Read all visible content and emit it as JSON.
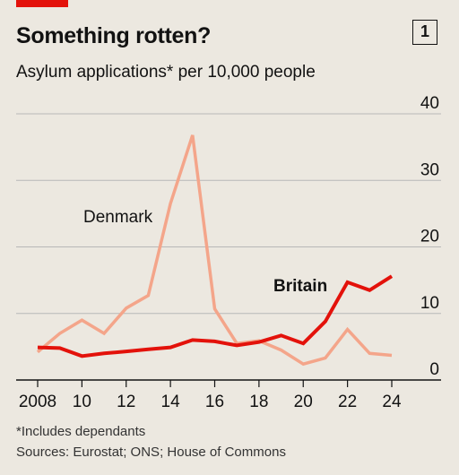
{
  "header": {
    "title": "Something rotten?",
    "chart_number": "1",
    "subtitle": "Asylum applications* per 10,000 people"
  },
  "footer": {
    "footnote": "*Includes dependants",
    "source": "Sources: Eurostat; ONS; House of Commons"
  },
  "colors": {
    "background": "#ece8e0",
    "accent": "#e3120b",
    "britain": "#e3120b",
    "denmark": "#f4a58a",
    "grid": "#b7b7b7"
  },
  "chart_data": {
    "type": "line",
    "title": "Something rotten?",
    "subtitle": "Asylum applications* per 10,000 people",
    "x_ticks": [
      {
        "value": 2008,
        "label": "2008"
      },
      {
        "value": 2010,
        "label": "10"
      },
      {
        "value": 2012,
        "label": "12"
      },
      {
        "value": 2014,
        "label": "14"
      },
      {
        "value": 2016,
        "label": "16"
      },
      {
        "value": 2018,
        "label": "18"
      },
      {
        "value": 2020,
        "label": "20"
      },
      {
        "value": 2022,
        "label": "22"
      },
      {
        "value": 2024,
        "label": "24"
      }
    ],
    "y_ticks": [
      0,
      10,
      20,
      30,
      40
    ],
    "ylim": [
      0,
      40
    ],
    "xlim": [
      2008,
      2024
    ],
    "grid": true,
    "series": [
      {
        "name": "Britain",
        "x": [
          2008,
          2009,
          2010,
          2011,
          2012,
          2013,
          2014,
          2015,
          2016,
          2017,
          2018,
          2019,
          2020,
          2021,
          2022,
          2023,
          2024
        ],
        "values": [
          4.9,
          4.8,
          3.6,
          4.0,
          4.3,
          4.6,
          4.9,
          6.0,
          5.8,
          5.2,
          5.7,
          6.7,
          5.5,
          8.8,
          14.7,
          13.5,
          15.6
        ]
      },
      {
        "name": "Denmark",
        "x": [
          2008,
          2009,
          2010,
          2011,
          2012,
          2013,
          2014,
          2015,
          2016,
          2017,
          2018,
          2019,
          2020,
          2021,
          2022,
          2023,
          2024
        ],
        "values": [
          4.2,
          7.0,
          9.0,
          7.0,
          10.8,
          12.7,
          26.5,
          36.8,
          10.7,
          5.5,
          5.9,
          4.5,
          2.4,
          3.3,
          7.6,
          4.0,
          3.7
        ]
      }
    ]
  }
}
